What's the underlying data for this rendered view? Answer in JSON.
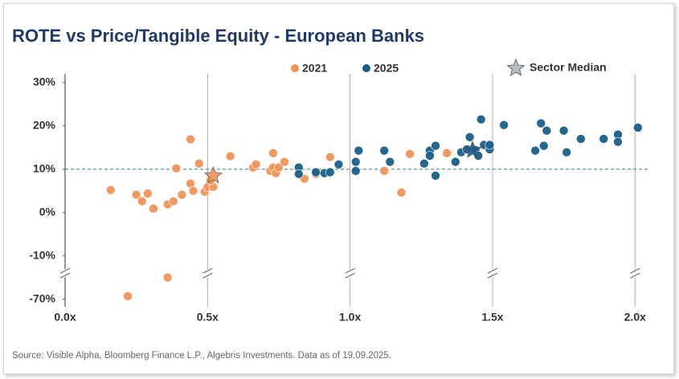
{
  "chart_data": {
    "type": "scatter",
    "title": "ROTE vs Price/Tangible Equity - European Banks",
    "source": "Source: Visible Alpha, Bloomberg Finance L.P., Algebris Investments. Data as of 19.09.2025.",
    "xlim": [
      0,
      2.05
    ],
    "ylim": [
      -71,
      32
    ],
    "ybreak": [
      -64,
      -14
    ],
    "xticks": [
      {
        "value": 0,
        "label": "0.0x"
      },
      {
        "value": 0.5,
        "label": "0.5x"
      },
      {
        "value": 1,
        "label": "1.0x"
      },
      {
        "value": 1.5,
        "label": "1.5x"
      },
      {
        "value": 2,
        "label": "2.0x"
      }
    ],
    "yticks": [
      {
        "value": -70,
        "label": "-70%"
      },
      {
        "value": -10,
        "label": "-10%"
      },
      {
        "value": 0,
        "label": "0%"
      },
      {
        "value": 10,
        "label": "10%"
      },
      {
        "value": 20,
        "label": "20%"
      },
      {
        "value": 30,
        "label": "30%"
      }
    ],
    "reference_y": 10,
    "reference_color": "#2f7f86",
    "series": [
      {
        "name": "2021",
        "color": "#f0955a",
        "x": [
          0.16,
          0.22,
          0.25,
          0.27,
          0.29,
          0.31,
          0.36,
          0.36,
          0.38,
          0.39,
          0.41,
          0.44,
          0.44,
          0.45,
          0.47,
          0.49,
          0.5,
          0.52,
          0.51,
          0.58,
          0.66,
          0.67,
          0.73,
          0.72,
          0.73,
          0.74,
          0.75,
          0.77,
          0.84,
          0.88,
          0.93,
          1.12,
          1.18,
          1.21,
          1.34
        ],
        "values": [
          5.2,
          -69.3,
          4.1,
          2.6,
          4.4,
          0.9,
          -65,
          1.9,
          2.6,
          10.2,
          4.1,
          16.9,
          6.7,
          5,
          11.3,
          4.8,
          5.9,
          5.9,
          7.4,
          13,
          10.4,
          11.1,
          13.7,
          9.6,
          10.4,
          9.1,
          10.4,
          11.7,
          7.8,
          8.9,
          12.8,
          9.6,
          4.6,
          13.5,
          13.7
        ]
      },
      {
        "name": "2025",
        "color": "#1a5f8a",
        "x": [
          0.82,
          0.82,
          0.88,
          0.91,
          0.93,
          0.96,
          1.02,
          1.02,
          1.03,
          1.12,
          1.14,
          1.26,
          1.28,
          1.28,
          1.3,
          1.3,
          1.37,
          1.39,
          1.41,
          1.42,
          1.44,
          1.45,
          1.46,
          1.47,
          1.49,
          1.49,
          1.54,
          1.65,
          1.67,
          1.68,
          1.69,
          1.75,
          1.76,
          1.81,
          1.89,
          1.94,
          1.94,
          2.01
        ],
        "values": [
          10.4,
          8.9,
          9.3,
          9.1,
          9.3,
          11.1,
          11.7,
          9.6,
          14.3,
          14.3,
          11.7,
          11.3,
          14.3,
          13.1,
          15.4,
          8.5,
          11.7,
          13.9,
          14.6,
          17.4,
          14.4,
          13.1,
          21.5,
          15.6,
          14.6,
          15.6,
          20.2,
          14.3,
          20.6,
          15.4,
          18.9,
          18.9,
          13.9,
          17,
          17,
          18,
          16.3,
          19.6
        ]
      }
    ],
    "median": {
      "name": "Sector Median",
      "color": "#b7bbc2",
      "x": [
        0.52,
        1.43
      ],
      "values": [
        8.5,
        14.4
      ],
      "colors": [
        "#f0955a",
        "#1a5f8a"
      ]
    }
  }
}
